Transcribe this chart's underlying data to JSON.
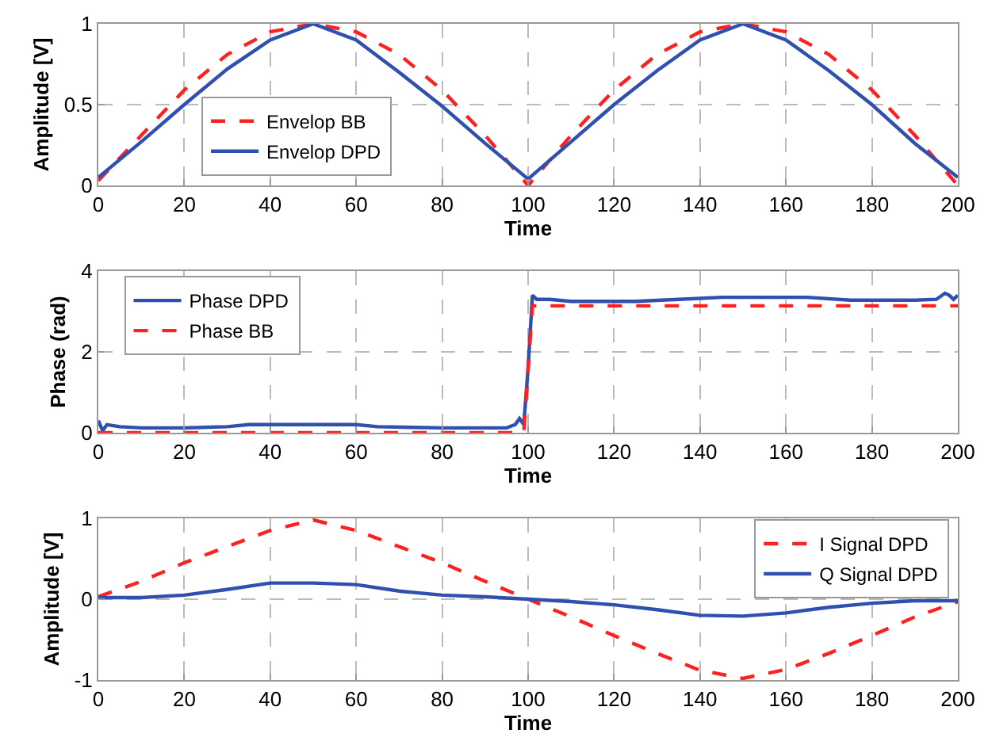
{
  "chart_data": [
    {
      "type": "line",
      "xlabel": "Time",
      "ylabel": "Amplitude [V]",
      "x": [
        0,
        10,
        20,
        30,
        40,
        50,
        60,
        70,
        80,
        90,
        100,
        110,
        120,
        130,
        140,
        150,
        160,
        170,
        180,
        190,
        200
      ],
      "xlim": [
        0,
        200
      ],
      "xticks": [
        0,
        20,
        40,
        60,
        80,
        100,
        120,
        140,
        160,
        180,
        200
      ],
      "ylim": [
        0,
        1
      ],
      "yticks": [
        0,
        0.5,
        1
      ],
      "grid": true,
      "legend": "bottom left",
      "series": [
        {
          "name": "Envelop BB",
          "color": "#ff2020",
          "line_style": "dashed",
          "values": [
            0.03,
            0.31,
            0.59,
            0.81,
            0.95,
            1,
            0.95,
            0.81,
            0.59,
            0.31,
            0,
            0.31,
            0.59,
            0.81,
            0.95,
            1,
            0.95,
            0.81,
            0.59,
            0.31,
            0
          ]
        },
        {
          "name": "Envelop DPD",
          "color": "#3050b0",
          "line_style": "solid",
          "values": [
            0.05,
            0.27,
            0.5,
            0.72,
            0.9,
            1,
            0.9,
            0.7,
            0.49,
            0.26,
            0.04,
            0.27,
            0.5,
            0.71,
            0.9,
            1,
            0.9,
            0.71,
            0.5,
            0.26,
            0.05
          ]
        }
      ]
    },
    {
      "type": "line",
      "xlabel": "Time",
      "ylabel": "Phase (rad)",
      "xlim": [
        0,
        200
      ],
      "xticks": [
        0,
        20,
        40,
        60,
        80,
        100,
        120,
        140,
        160,
        180,
        200
      ],
      "ylim": [
        0,
        4
      ],
      "yticks": [
        0,
        2,
        4
      ],
      "grid": true,
      "legend": "top left",
      "series": [
        {
          "name": "Phase DPD",
          "color": "#3050b0",
          "line_style": "solid",
          "x": [
            0,
            1,
            2,
            5,
            10,
            20,
            30,
            35,
            40,
            60,
            65,
            80,
            95,
            97,
            98,
            99,
            100,
            101,
            102,
            105,
            110,
            125,
            135,
            145,
            150,
            155,
            165,
            175,
            190,
            195,
            197,
            198,
            199,
            200
          ],
          "values": [
            0.3,
            0.05,
            0.2,
            0.15,
            0.12,
            0.12,
            0.15,
            0.2,
            0.2,
            0.2,
            0.15,
            0.12,
            0.12,
            0.2,
            0.35,
            0.2,
            1.6,
            3.4,
            3.3,
            3.3,
            3.25,
            3.25,
            3.3,
            3.35,
            3.35,
            3.35,
            3.35,
            3.28,
            3.28,
            3.3,
            3.45,
            3.4,
            3.3,
            3.4
          ]
        },
        {
          "name": "Phase BB",
          "color": "#ff2020",
          "line_style": "dashed",
          "x": [
            0,
            99,
            101,
            200
          ],
          "values": [
            0,
            0,
            3.14,
            3.14
          ]
        }
      ]
    },
    {
      "type": "line",
      "xlabel": "Time",
      "ylabel": "Amplitude [V]",
      "x": [
        0,
        10,
        20,
        30,
        40,
        50,
        60,
        70,
        80,
        90,
        100,
        110,
        120,
        130,
        140,
        150,
        160,
        170,
        180,
        190,
        200
      ],
      "xlim": [
        0,
        200
      ],
      "xticks": [
        0,
        20,
        40,
        60,
        80,
        100,
        120,
        140,
        160,
        180,
        200
      ],
      "ylim": [
        -1,
        1
      ],
      "yticks": [
        -1,
        0,
        1
      ],
      "grid": true,
      "legend": "top right",
      "series": [
        {
          "name": "I Signal DPD",
          "color": "#ff2020",
          "line_style": "dashed",
          "values": [
            0.03,
            0.22,
            0.45,
            0.65,
            0.85,
            0.98,
            0.85,
            0.65,
            0.45,
            0.22,
            0,
            -0.22,
            -0.45,
            -0.67,
            -0.88,
            -0.98,
            -0.87,
            -0.67,
            -0.45,
            -0.22,
            -0.03
          ]
        },
        {
          "name": "Q Signal DPD",
          "color": "#3050b0",
          "line_style": "solid",
          "values": [
            0.02,
            0.02,
            0.05,
            0.12,
            0.2,
            0.2,
            0.18,
            0.1,
            0.05,
            0.03,
            0,
            -0.03,
            -0.07,
            -0.13,
            -0.2,
            -0.21,
            -0.17,
            -0.1,
            -0.05,
            -0.02,
            -0.02
          ]
        }
      ]
    }
  ]
}
